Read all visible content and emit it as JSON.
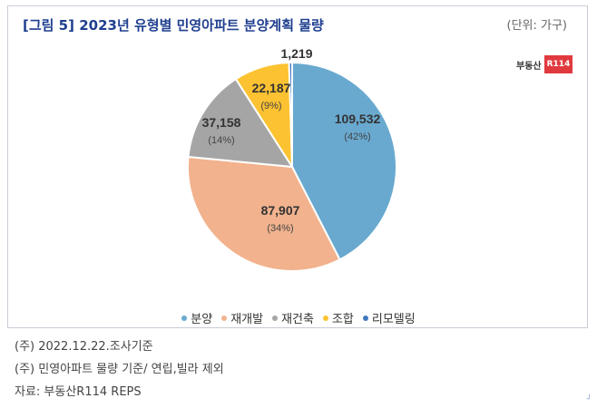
{
  "header": {
    "title": "[그림 5] 2023년 유형별 민영아파트 분양계획 물량",
    "unit": "(단위: 가구)"
  },
  "logo": {
    "text": "부동산",
    "box": "R114"
  },
  "chart_data": {
    "type": "pie",
    "title": "[그림 5] 2023년 유형별 민영아파트 분양계획 물량",
    "slices": [
      {
        "name": "분양",
        "value": 109532,
        "label": "109,532",
        "pct": "(42%)",
        "color": "#69a9cf"
      },
      {
        "name": "재개발",
        "value": 87907,
        "label": "87,907",
        "pct": "(34%)",
        "color": "#f1b28d"
      },
      {
        "name": "재건축",
        "value": 37158,
        "label": "37,158",
        "pct": "(14%)",
        "color": "#a5a5a5"
      },
      {
        "name": "조합",
        "value": 22187,
        "label": "22,187",
        "pct": "(9%)",
        "color": "#fcc231"
      },
      {
        "name": "리모델링",
        "value": 1219,
        "label": "1,219",
        "pct": "",
        "color": "#3f79bf"
      }
    ],
    "legend_position": "bottom"
  },
  "notes": [
    "(주) 2022.12.22.조사기준",
    "(주) 민영아파트 물량 기준/ 연립,빌라 제외",
    "자료: 부동산R114 REPS"
  ],
  "corner_mark": "┘"
}
